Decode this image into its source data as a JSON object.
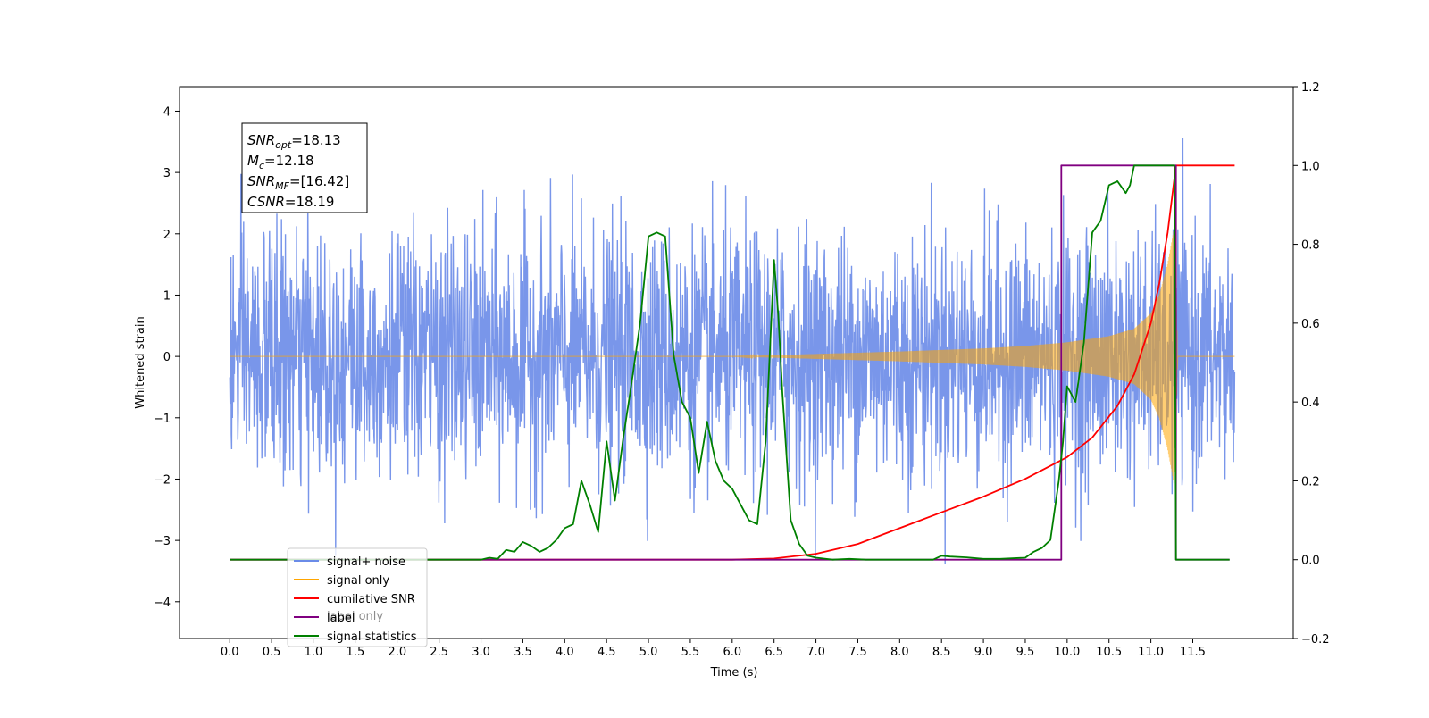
{
  "chart_data": {
    "type": "line",
    "xlabel": "Time (s)",
    "ylabel": "Whitened strain",
    "xlim": [
      -0.6,
      12.7
    ],
    "ylim": [
      -4.6,
      4.4
    ],
    "y2lim": [
      -0.2,
      1.2
    ],
    "x_ticks": [
      "0.0",
      "0.5",
      "1.0",
      "1.5",
      "2.0",
      "2.5",
      "3.0",
      "3.5",
      "4.0",
      "4.5",
      "5.0",
      "5.5",
      "6.0",
      "6.5",
      "7.0",
      "7.5",
      "8.0",
      "8.5",
      "9.0",
      "9.5",
      "10.0",
      "10.5",
      "11.0",
      "11.5"
    ],
    "y_ticks": [
      "4",
      "3",
      "2",
      "1",
      "0",
      "−1",
      "−2",
      "−3",
      "−4"
    ],
    "y2_ticks": [
      "1.2",
      "1.0",
      "0.8",
      "0.6",
      "0.4",
      "0.2",
      "0.0",
      "−0.2"
    ],
    "annotation": {
      "lines": [
        {
          "sym": "SNR",
          "sub": "opt",
          "val": "=18.13"
        },
        {
          "sym": "M",
          "sub": "c",
          "val": "=12.18"
        },
        {
          "sym": "SNR",
          "sub": "MF",
          "val": "=[16.42]"
        },
        {
          "sym": "CSNR",
          "sub": "",
          "val": "=18.19"
        }
      ]
    },
    "legend": {
      "position": "lower-left",
      "entries": [
        {
          "label": "signal+ noise",
          "color": "#6a8be8"
        },
        {
          "label": "signal only",
          "color": "#ffa500"
        },
        {
          "label": "cumilative SNR",
          "color": "#ff0000"
        },
        {
          "label": "label",
          "color": "#800080"
        },
        {
          "label": "signal statistics",
          "color": "#008000"
        }
      ],
      "hidden_behind_legend": "label only"
    },
    "series": [
      {
        "name": "signal+ noise",
        "axis": "left",
        "color": "#6a8be8",
        "x_range": [
          0.0,
          12.0
        ],
        "noise_sigma": 1.0,
        "noise_extent": [
          -4.1,
          3.95
        ]
      },
      {
        "name": "signal only",
        "axis": "left",
        "color": "#ffa500",
        "x_range": [
          0.0,
          12.0
        ],
        "chirp_peak_time": 11.3,
        "chirp_envelope": {
          "x": [
            0.0,
            6.0,
            7.0,
            8.0,
            9.0,
            9.5,
            10.0,
            10.5,
            10.8,
            11.0,
            11.1,
            11.2,
            11.28,
            11.32,
            12.0
          ],
          "amp": [
            0.0,
            0.0,
            0.04,
            0.08,
            0.13,
            0.17,
            0.23,
            0.33,
            0.45,
            0.7,
            1.0,
            1.5,
            2.1,
            0.0,
            0.0
          ]
        }
      },
      {
        "name": "cumilative SNR",
        "axis": "right",
        "color": "#ff0000",
        "x": [
          0.0,
          6.0,
          6.5,
          7.0,
          7.5,
          8.0,
          8.5,
          9.0,
          9.5,
          10.0,
          10.3,
          10.6,
          10.8,
          11.0,
          11.1,
          11.2,
          11.3,
          11.31,
          12.0
        ],
        "y": [
          0.0,
          0.0,
          0.003,
          0.015,
          0.04,
          0.08,
          0.12,
          0.16,
          0.205,
          0.26,
          0.31,
          0.39,
          0.47,
          0.6,
          0.7,
          0.83,
          1.0,
          1.0,
          1.0
        ]
      },
      {
        "name": "label",
        "axis": "right",
        "color": "#800080",
        "x": [
          0.0,
          9.93,
          9.93,
          11.3,
          11.3,
          11.94
        ],
        "y": [
          0.0,
          0.0,
          1.0,
          1.0,
          0.0,
          0.0
        ]
      },
      {
        "name": "signal statistics",
        "axis": "right",
        "color": "#008000",
        "x": [
          0.0,
          3.0,
          3.1,
          3.2,
          3.3,
          3.4,
          3.5,
          3.6,
          3.7,
          3.8,
          3.9,
          4.0,
          4.1,
          4.2,
          4.3,
          4.4,
          4.5,
          4.6,
          4.7,
          4.8,
          4.9,
          5.0,
          5.1,
          5.2,
          5.3,
          5.4,
          5.5,
          5.6,
          5.7,
          5.8,
          5.9,
          6.0,
          6.1,
          6.2,
          6.3,
          6.4,
          6.5,
          6.55,
          6.6,
          6.7,
          6.8,
          6.9,
          7.0,
          7.2,
          7.4,
          7.6,
          8.0,
          8.4,
          8.5,
          8.6,
          8.8,
          9.0,
          9.2,
          9.5,
          9.6,
          9.7,
          9.8,
          9.9,
          9.95,
          10.0,
          10.1,
          10.2,
          10.3,
          10.4,
          10.5,
          10.6,
          10.7,
          10.75,
          10.8,
          11.0,
          11.25,
          11.28,
          11.3,
          11.94
        ],
        "y": [
          0.0,
          0.0,
          0.005,
          0.002,
          0.025,
          0.02,
          0.045,
          0.035,
          0.02,
          0.03,
          0.05,
          0.08,
          0.09,
          0.2,
          0.14,
          0.07,
          0.3,
          0.15,
          0.31,
          0.45,
          0.6,
          0.82,
          0.83,
          0.82,
          0.52,
          0.4,
          0.36,
          0.22,
          0.35,
          0.25,
          0.2,
          0.18,
          0.14,
          0.1,
          0.09,
          0.3,
          0.76,
          0.62,
          0.42,
          0.1,
          0.04,
          0.01,
          0.005,
          0.0,
          0.002,
          0.0,
          0.0,
          0.0,
          0.01,
          0.008,
          0.006,
          0.002,
          0.002,
          0.005,
          0.02,
          0.03,
          0.05,
          0.2,
          0.3,
          0.44,
          0.4,
          0.55,
          0.83,
          0.86,
          0.95,
          0.96,
          0.93,
          0.95,
          1.0,
          1.0,
          1.0,
          1.0,
          0.0,
          0.0
        ]
      }
    ]
  }
}
